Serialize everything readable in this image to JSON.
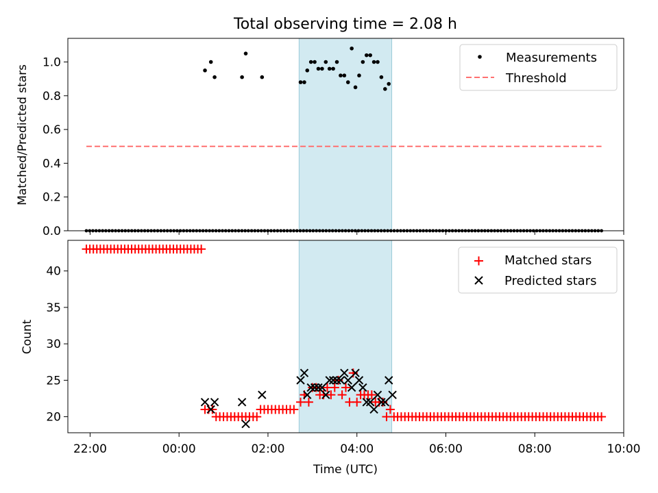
{
  "figure_title": "Total observing time = 2.08 h",
  "chart_data": [
    {
      "type": "scatter",
      "panel": "top",
      "title": "Total observing time = 2.08 h",
      "xlabel": "",
      "ylabel": "Matched/Predicted stars",
      "xlim": [
        "21:30",
        "10:00"
      ],
      "ylim": [
        0,
        1.14
      ],
      "yticks": [
        0.0,
        0.2,
        0.4,
        0.6,
        0.8,
        1.0
      ],
      "ytick_labels": [
        "0.0",
        "0.2",
        "0.4",
        "0.6",
        "0.8",
        "1.0"
      ],
      "legend_position": "top-right",
      "legend": [
        "Measurements",
        "Threshold"
      ],
      "highlight_band": {
        "start": "02:42",
        "end": "04:47",
        "color": "#add8e6"
      },
      "threshold": {
        "name": "Threshold",
        "value": 0.5,
        "x_start": "21:55",
        "x_end": "09:30",
        "color": "#ff7070",
        "style": "dashed"
      },
      "series": [
        {
          "name": "Measurements",
          "color": "#000000",
          "marker": "dot",
          "zero_points": {
            "x_start": "21:55",
            "x_end": "09:30",
            "count": 160
          },
          "points": [
            {
              "x": "00:35",
              "y": 0.95
            },
            {
              "x": "00:43",
              "y": 1.0
            },
            {
              "x": "00:48",
              "y": 0.91
            },
            {
              "x": "01:25",
              "y": 0.91
            },
            {
              "x": "01:30",
              "y": 1.05
            },
            {
              "x": "01:52",
              "y": 0.91
            },
            {
              "x": "02:44",
              "y": 0.88
            },
            {
              "x": "02:49",
              "y": 0.88
            },
            {
              "x": "02:53",
              "y": 0.95
            },
            {
              "x": "02:58",
              "y": 1.0
            },
            {
              "x": "03:03",
              "y": 1.0
            },
            {
              "x": "03:08",
              "y": 0.96
            },
            {
              "x": "03:13",
              "y": 0.96
            },
            {
              "x": "03:18",
              "y": 1.0
            },
            {
              "x": "03:23",
              "y": 0.96
            },
            {
              "x": "03:28",
              "y": 0.96
            },
            {
              "x": "03:33",
              "y": 1.0
            },
            {
              "x": "03:38",
              "y": 0.92
            },
            {
              "x": "03:43",
              "y": 0.92
            },
            {
              "x": "03:48",
              "y": 0.88
            },
            {
              "x": "03:53",
              "y": 1.08
            },
            {
              "x": "03:58",
              "y": 0.85
            },
            {
              "x": "04:03",
              "y": 0.92
            },
            {
              "x": "04:08",
              "y": 1.0
            },
            {
              "x": "04:13",
              "y": 1.04
            },
            {
              "x": "04:18",
              "y": 1.04
            },
            {
              "x": "04:23",
              "y": 1.0
            },
            {
              "x": "04:28",
              "y": 1.0
            },
            {
              "x": "04:33",
              "y": 0.91
            },
            {
              "x": "04:38",
              "y": 0.84
            },
            {
              "x": "04:43",
              "y": 0.87
            }
          ]
        }
      ]
    },
    {
      "type": "scatter",
      "panel": "bottom",
      "xlabel": "Time (UTC)",
      "ylabel": "Count",
      "xlim": [
        "21:30",
        "10:00"
      ],
      "ylim": [
        17.8,
        44.2
      ],
      "xticks": [
        "22:00",
        "00:00",
        "02:00",
        "04:00",
        "06:00",
        "08:00",
        "10:00"
      ],
      "yticks": [
        20,
        25,
        30,
        35,
        40
      ],
      "ytick_labels": [
        "20",
        "25",
        "30",
        "35",
        "40"
      ],
      "legend_position": "top-right",
      "legend": [
        "Matched stars",
        "Predicted stars"
      ],
      "highlight_band": {
        "start": "02:42",
        "end": "04:47",
        "color": "#add8e6"
      },
      "series": [
        {
          "name": "Matched stars",
          "color": "#ff0000",
          "marker": "plus",
          "runs": [
            {
              "x_start": "21:55",
              "x_end": "00:30",
              "count": 34,
              "value": 43
            },
            {
              "x_start": "04:50",
              "x_end": "09:30",
              "count": 58,
              "value": 20
            }
          ],
          "points": [
            {
              "x": "00:35",
              "y": 21
            },
            {
              "x": "00:40",
              "y": 21
            },
            {
              "x": "00:45",
              "y": 21
            },
            {
              "x": "00:50",
              "y": 20
            },
            {
              "x": "00:55",
              "y": 20
            },
            {
              "x": "01:00",
              "y": 20
            },
            {
              "x": "01:05",
              "y": 20
            },
            {
              "x": "01:10",
              "y": 20
            },
            {
              "x": "01:15",
              "y": 20
            },
            {
              "x": "01:20",
              "y": 20
            },
            {
              "x": "01:25",
              "y": 20
            },
            {
              "x": "01:30",
              "y": 20
            },
            {
              "x": "01:35",
              "y": 20
            },
            {
              "x": "01:40",
              "y": 20
            },
            {
              "x": "01:45",
              "y": 20
            },
            {
              "x": "01:50",
              "y": 21
            },
            {
              "x": "01:55",
              "y": 21
            },
            {
              "x": "02:00",
              "y": 21
            },
            {
              "x": "02:05",
              "y": 21
            },
            {
              "x": "02:10",
              "y": 21
            },
            {
              "x": "02:15",
              "y": 21
            },
            {
              "x": "02:20",
              "y": 21
            },
            {
              "x": "02:25",
              "y": 21
            },
            {
              "x": "02:30",
              "y": 21
            },
            {
              "x": "02:35",
              "y": 21
            },
            {
              "x": "02:44",
              "y": 22
            },
            {
              "x": "02:49",
              "y": 23
            },
            {
              "x": "02:55",
              "y": 22
            },
            {
              "x": "03:00",
              "y": 24
            },
            {
              "x": "03:05",
              "y": 24
            },
            {
              "x": "03:10",
              "y": 23
            },
            {
              "x": "03:15",
              "y": 23
            },
            {
              "x": "03:20",
              "y": 24
            },
            {
              "x": "03:25",
              "y": 23
            },
            {
              "x": "03:30",
              "y": 24
            },
            {
              "x": "03:35",
              "y": 25
            },
            {
              "x": "03:40",
              "y": 23
            },
            {
              "x": "03:45",
              "y": 24
            },
            {
              "x": "03:50",
              "y": 22
            },
            {
              "x": "03:55",
              "y": 26
            },
            {
              "x": "04:00",
              "y": 22
            },
            {
              "x": "04:05",
              "y": 23
            },
            {
              "x": "04:10",
              "y": 23
            },
            {
              "x": "04:15",
              "y": 23
            },
            {
              "x": "04:20",
              "y": 23
            },
            {
              "x": "04:25",
              "y": 22
            },
            {
              "x": "04:30",
              "y": 22
            },
            {
              "x": "04:35",
              "y": 22
            },
            {
              "x": "04:40",
              "y": 20
            },
            {
              "x": "04:45",
              "y": 21
            }
          ]
        },
        {
          "name": "Predicted stars",
          "color": "#000000",
          "marker": "x",
          "points": [
            {
              "x": "00:35",
              "y": 22
            },
            {
              "x": "00:43",
              "y": 21
            },
            {
              "x": "00:48",
              "y": 22
            },
            {
              "x": "01:25",
              "y": 22
            },
            {
              "x": "01:30",
              "y": 19
            },
            {
              "x": "01:52",
              "y": 23
            },
            {
              "x": "02:44",
              "y": 25
            },
            {
              "x": "02:49",
              "y": 26
            },
            {
              "x": "02:53",
              "y": 23
            },
            {
              "x": "02:58",
              "y": 24
            },
            {
              "x": "03:03",
              "y": 24
            },
            {
              "x": "03:08",
              "y": 24
            },
            {
              "x": "03:13",
              "y": 24
            },
            {
              "x": "03:18",
              "y": 23
            },
            {
              "x": "03:23",
              "y": 25
            },
            {
              "x": "03:28",
              "y": 25
            },
            {
              "x": "03:33",
              "y": 25
            },
            {
              "x": "03:38",
              "y": 25
            },
            {
              "x": "03:43",
              "y": 26
            },
            {
              "x": "03:48",
              "y": 25
            },
            {
              "x": "03:53",
              "y": 24
            },
            {
              "x": "03:58",
              "y": 26
            },
            {
              "x": "04:03",
              "y": 25
            },
            {
              "x": "04:08",
              "y": 24
            },
            {
              "x": "04:13",
              "y": 22
            },
            {
              "x": "04:18",
              "y": 22
            },
            {
              "x": "04:23",
              "y": 21
            },
            {
              "x": "04:28",
              "y": 23
            },
            {
              "x": "04:33",
              "y": 22
            },
            {
              "x": "04:38",
              "y": 22
            },
            {
              "x": "04:43",
              "y": 25
            },
            {
              "x": "04:48",
              "y": 23
            }
          ]
        }
      ]
    }
  ]
}
